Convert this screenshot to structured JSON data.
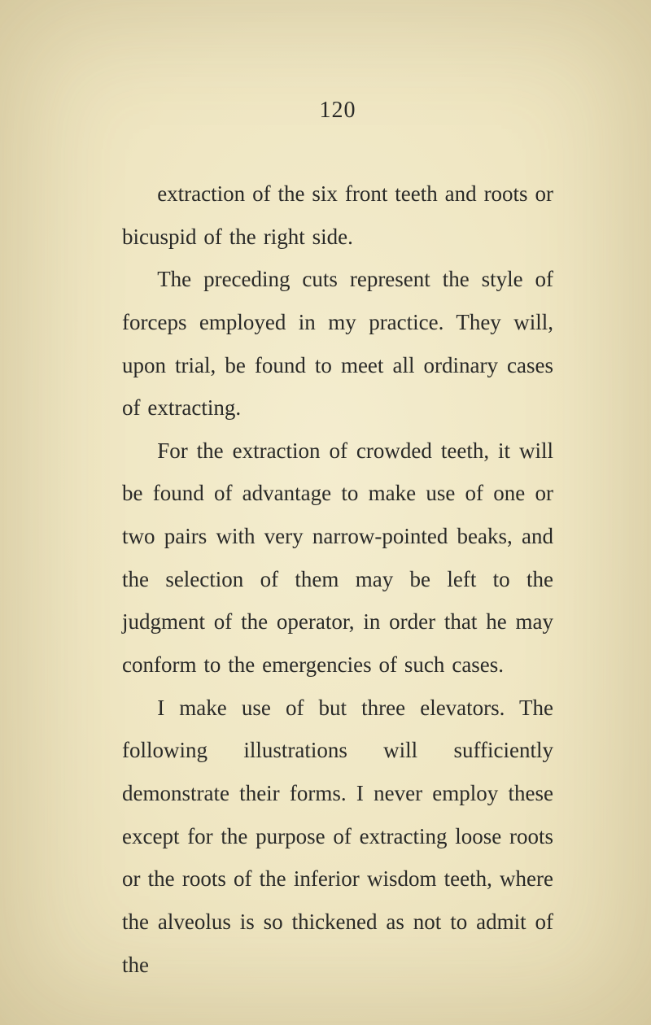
{
  "page": {
    "number": "120",
    "background_color": "#f0e8c8",
    "text_color": "#2a2a28",
    "font_family": "Georgia, 'Times New Roman', serif",
    "page_number_fontsize": 28,
    "body_fontsize": 27,
    "line_height": 1.95,
    "text_indent_em": 1.6,
    "paragraphs": [
      "extraction of the six front teeth and roots or bicuspid of the right side.",
      "The preceding cuts represent the style of forceps employed in my practice. They will, upon trial, be found to meet all ordinary cases of extracting.",
      "For the extraction of crowded teeth, it will be found of advantage to make use of one or two pairs with very narrow-pointed beaks, and the selection of them may be left to the judgment of the oper­ator, in order that he may conform to the emergencies of such cases.",
      "I make use of but three elevators. The following illustrations will suffi­ciently demonstrate their forms. I never employ these except for the purpose of extracting loose roots or the roots of the inferior wisdom teeth, where the alveo­lus is so thickened as not to admit of the"
    ]
  }
}
